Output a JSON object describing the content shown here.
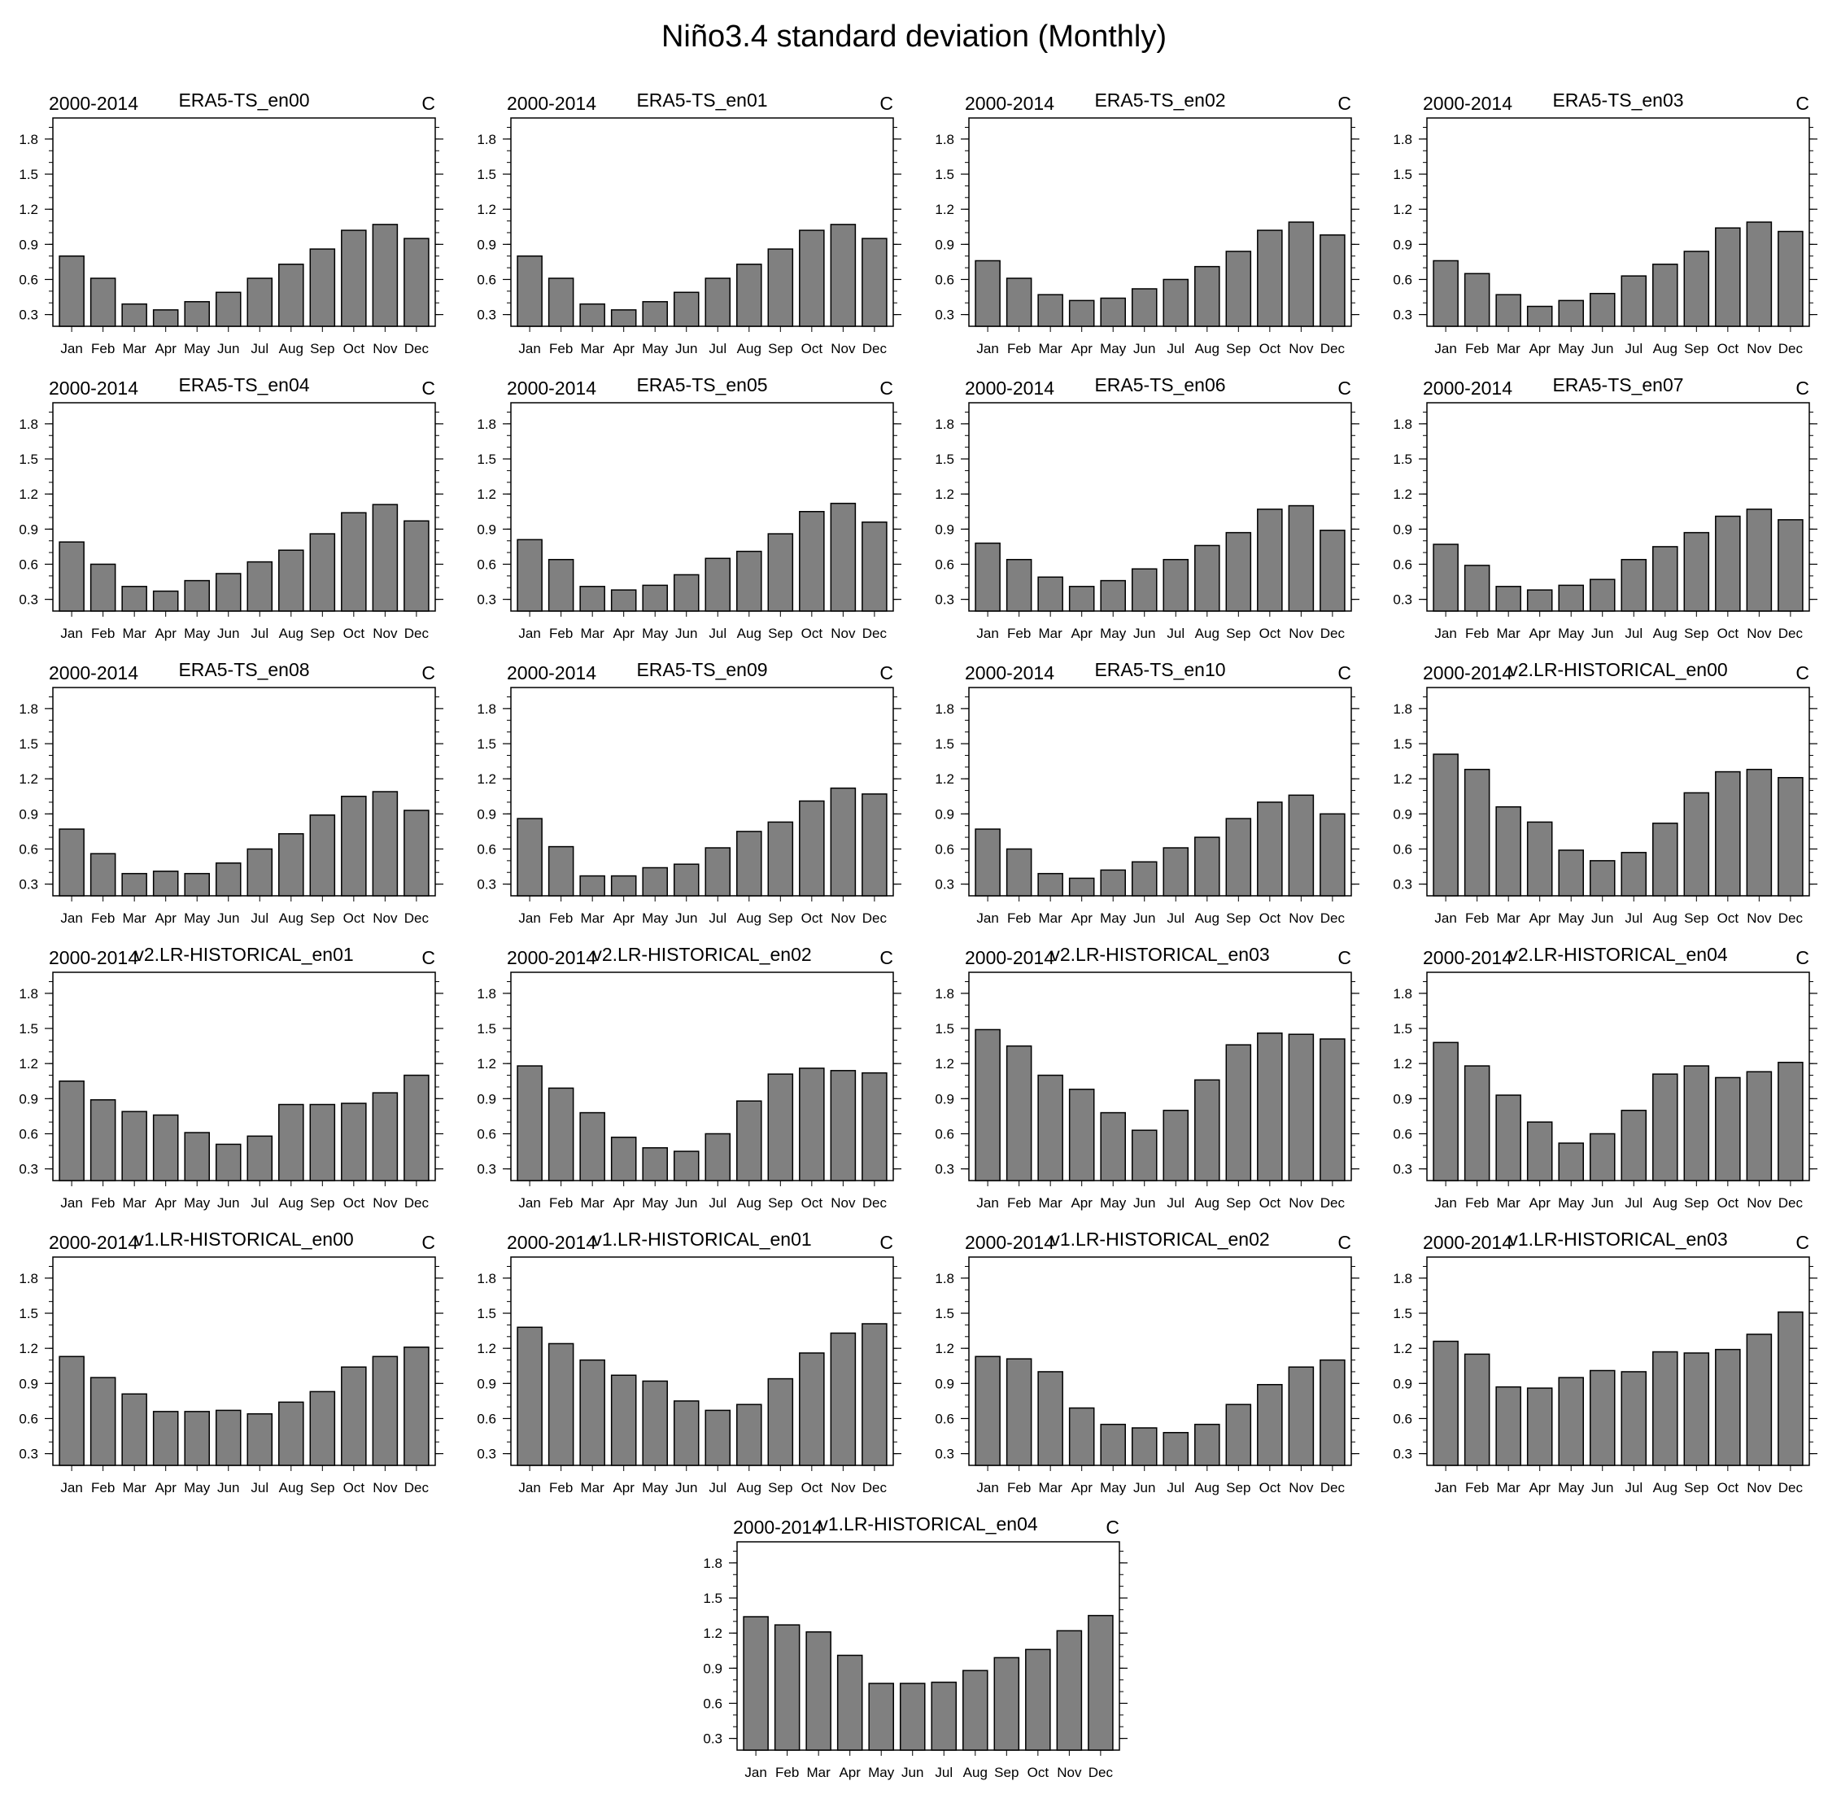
{
  "title": "Niño3.4 standard deviation (Monthly)",
  "chart_data": {
    "type": "bar",
    "shared": {
      "categories": [
        "Jan",
        "Feb",
        "Mar",
        "Apr",
        "May",
        "Jun",
        "Jul",
        "Aug",
        "Sep",
        "Oct",
        "Nov",
        "Dec"
      ],
      "yticks": [
        "0.3",
        "0.6",
        "0.9",
        "1.2",
        "1.5",
        "1.8"
      ],
      "ylim": [
        0.2,
        1.98
      ],
      "left_label": "2000-2014",
      "right_label": "C",
      "bar_color": "#808080",
      "edge_color": "#000000"
    },
    "panels": [
      {
        "title": "ERA5-TS_en00",
        "values": [
          0.8,
          0.61,
          0.39,
          0.34,
          0.41,
          0.49,
          0.61,
          0.73,
          0.86,
          1.02,
          1.07,
          0.95
        ]
      },
      {
        "title": "ERA5-TS_en01",
        "values": [
          0.8,
          0.61,
          0.39,
          0.34,
          0.41,
          0.49,
          0.61,
          0.73,
          0.86,
          1.02,
          1.07,
          0.95
        ]
      },
      {
        "title": "ERA5-TS_en02",
        "values": [
          0.76,
          0.61,
          0.47,
          0.42,
          0.44,
          0.52,
          0.6,
          0.71,
          0.84,
          1.02,
          1.09,
          0.98
        ]
      },
      {
        "title": "ERA5-TS_en03",
        "values": [
          0.76,
          0.65,
          0.47,
          0.37,
          0.42,
          0.48,
          0.63,
          0.73,
          0.84,
          1.04,
          1.09,
          1.01
        ]
      },
      {
        "title": "ERA5-TS_en04",
        "values": [
          0.79,
          0.6,
          0.41,
          0.37,
          0.46,
          0.52,
          0.62,
          0.72,
          0.86,
          1.04,
          1.11,
          0.97
        ]
      },
      {
        "title": "ERA5-TS_en05",
        "values": [
          0.81,
          0.64,
          0.41,
          0.38,
          0.42,
          0.51,
          0.65,
          0.71,
          0.86,
          1.05,
          1.12,
          0.96
        ]
      },
      {
        "title": "ERA5-TS_en06",
        "values": [
          0.78,
          0.64,
          0.49,
          0.41,
          0.46,
          0.56,
          0.64,
          0.76,
          0.87,
          1.07,
          1.1,
          0.89
        ]
      },
      {
        "title": "ERA5-TS_en07",
        "values": [
          0.77,
          0.59,
          0.41,
          0.38,
          0.42,
          0.47,
          0.64,
          0.75,
          0.87,
          1.01,
          1.07,
          0.98
        ]
      },
      {
        "title": "ERA5-TS_en08",
        "values": [
          0.77,
          0.56,
          0.39,
          0.41,
          0.39,
          0.48,
          0.6,
          0.73,
          0.89,
          1.05,
          1.09,
          0.93
        ]
      },
      {
        "title": "ERA5-TS_en09",
        "values": [
          0.86,
          0.62,
          0.37,
          0.37,
          0.44,
          0.47,
          0.61,
          0.75,
          0.83,
          1.01,
          1.12,
          1.07
        ]
      },
      {
        "title": "ERA5-TS_en10",
        "values": [
          0.77,
          0.6,
          0.39,
          0.35,
          0.42,
          0.49,
          0.61,
          0.7,
          0.86,
          1.0,
          1.06,
          0.9
        ]
      },
      {
        "title": "v2.LR-HISTORICAL_en00",
        "values": [
          1.41,
          1.28,
          0.96,
          0.83,
          0.59,
          0.5,
          0.57,
          0.82,
          1.08,
          1.26,
          1.28,
          1.21
        ]
      },
      {
        "title": "v2.LR-HISTORICAL_en01",
        "values": [
          1.05,
          0.89,
          0.79,
          0.76,
          0.61,
          0.51,
          0.58,
          0.85,
          0.85,
          0.86,
          0.95,
          1.1
        ]
      },
      {
        "title": "v2.LR-HISTORICAL_en02",
        "values": [
          1.18,
          0.99,
          0.78,
          0.57,
          0.48,
          0.45,
          0.6,
          0.88,
          1.11,
          1.16,
          1.14,
          1.12
        ]
      },
      {
        "title": "v2.LR-HISTORICAL_en03",
        "values": [
          1.49,
          1.35,
          1.1,
          0.98,
          0.78,
          0.63,
          0.8,
          1.06,
          1.36,
          1.46,
          1.45,
          1.41
        ]
      },
      {
        "title": "v2.LR-HISTORICAL_en04",
        "values": [
          1.38,
          1.18,
          0.93,
          0.7,
          0.52,
          0.6,
          0.8,
          1.11,
          1.18,
          1.08,
          1.13,
          1.21
        ]
      },
      {
        "title": "v1.LR-HISTORICAL_en00",
        "values": [
          1.13,
          0.95,
          0.81,
          0.66,
          0.66,
          0.67,
          0.64,
          0.74,
          0.83,
          1.04,
          1.13,
          1.21
        ]
      },
      {
        "title": "v1.LR-HISTORICAL_en01",
        "values": [
          1.38,
          1.24,
          1.1,
          0.97,
          0.92,
          0.75,
          0.67,
          0.72,
          0.94,
          1.16,
          1.33,
          1.41
        ]
      },
      {
        "title": "v1.LR-HISTORICAL_en02",
        "values": [
          1.13,
          1.11,
          1.0,
          0.69,
          0.55,
          0.52,
          0.48,
          0.55,
          0.72,
          0.89,
          1.04,
          1.1
        ]
      },
      {
        "title": "v1.LR-HISTORICAL_en03",
        "values": [
          1.26,
          1.15,
          0.87,
          0.86,
          0.95,
          1.01,
          1.0,
          1.17,
          1.16,
          1.19,
          1.32,
          1.51
        ]
      },
      {
        "title": "v1.LR-HISTORICAL_en04",
        "values": [
          1.34,
          1.27,
          1.21,
          1.01,
          0.77,
          0.77,
          0.78,
          0.88,
          0.99,
          1.06,
          1.22,
          1.35
        ]
      }
    ]
  }
}
